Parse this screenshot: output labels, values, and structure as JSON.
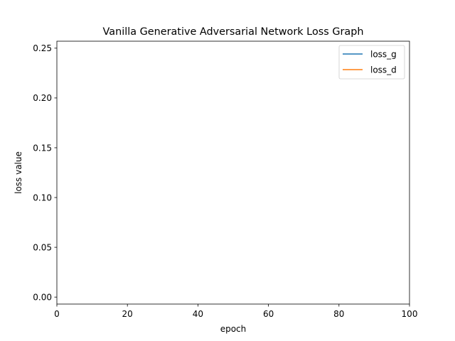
{
  "chart_data": {
    "type": "line",
    "title": "Vanilla Generative Adversarial Network Loss Graph",
    "xlabel": "epoch",
    "ylabel": "loss value",
    "xlim": [
      0,
      100
    ],
    "ylim": [
      -0.007,
      0.257
    ],
    "xticks": [
      0,
      20,
      40,
      60,
      80,
      100
    ],
    "xtick_labels": [
      "0",
      "20",
      "40",
      "60",
      "80",
      "100"
    ],
    "yticks": [
      0.0,
      0.05,
      0.1,
      0.15,
      0.2,
      0.25
    ],
    "ytick_labels": [
      "0.00",
      "0.05",
      "0.10",
      "0.15",
      "0.20",
      "0.25"
    ],
    "grid": false,
    "legend_position": "top-right",
    "series": [
      {
        "name": "loss_g",
        "color": "#1f77b4",
        "x": [],
        "y": []
      },
      {
        "name": "loss_d",
        "color": "#ff7f0e",
        "x": [],
        "y": []
      }
    ]
  }
}
